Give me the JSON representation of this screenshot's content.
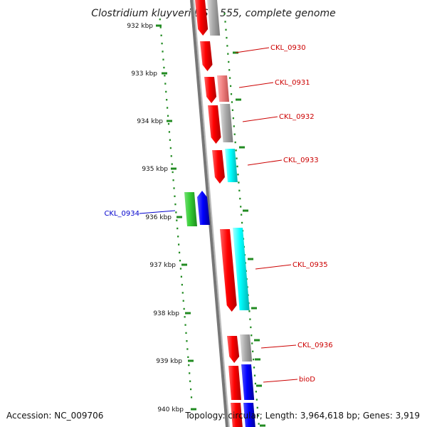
{
  "title": "Clostridium kluyveri DSM 555, complete genome",
  "accession": "Accession: NC_009706",
  "topology": "Topology: circular; Length: 3,964,618 bp; Genes: 3,919",
  "ticks": [
    "932 kbp",
    "933 kbp",
    "934 kbp",
    "935 kbp",
    "936 kbp",
    "937 kbp",
    "938 kbp",
    "939 kbp",
    "940 kbp"
  ],
  "genes": [
    {
      "label": "CKL_0930",
      "color": "#cc0000"
    },
    {
      "label": "CKL_0931",
      "color": "#cc0000"
    },
    {
      "label": "CKL_0932",
      "color": "#cc0000"
    },
    {
      "label": "CKL_0933",
      "color": "#cc0000"
    },
    {
      "label": "CKL_0934",
      "color": "#0000cc"
    },
    {
      "label": "CKL_0935",
      "color": "#cc0000"
    },
    {
      "label": "CKL_0936",
      "color": "#cc0000"
    },
    {
      "label": "bioD",
      "color": "#cc0000"
    }
  ],
  "colors": {
    "gene_red": "#ff0000",
    "gene_green": "#33cc33",
    "gene_blue": "#0000ff",
    "gene_cyan": "#00ffff",
    "gene_gray": "#aaaaaa",
    "gene_pink": "#f08080",
    "ruler_dots": "#228b22",
    "backbone": "#777777"
  }
}
